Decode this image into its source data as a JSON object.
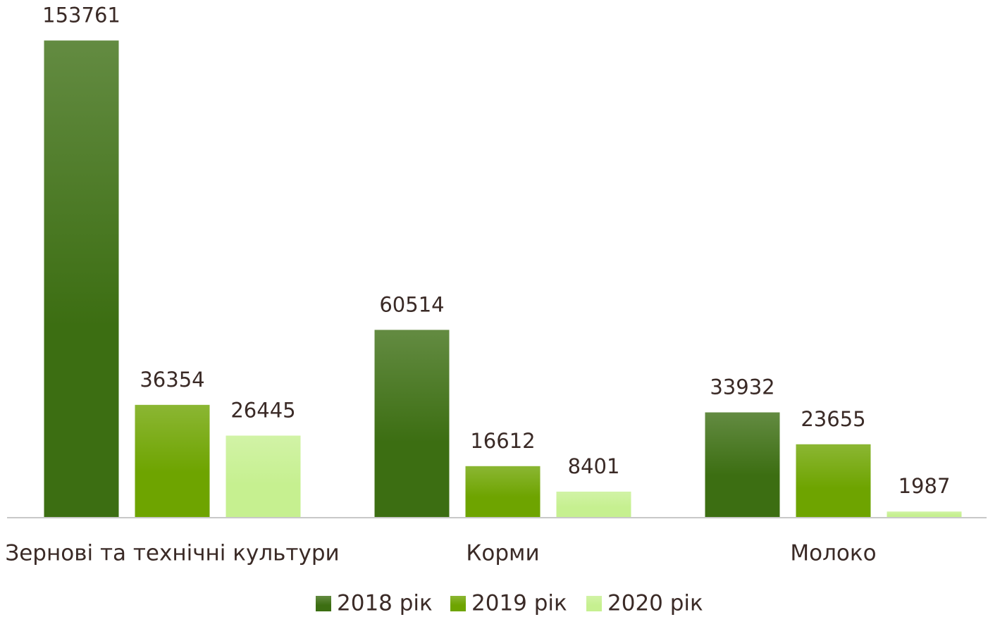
{
  "chart_data": {
    "type": "bar",
    "categories": [
      "Зернові та технічні культури",
      "Корми",
      "Молоко"
    ],
    "series": [
      {
        "name": "2018 рік",
        "color": "#3c6e12",
        "values": [
          153761,
          60514,
          33932
        ]
      },
      {
        "name": "2019 рік",
        "color": "#6ea400",
        "values": [
          36354,
          16612,
          23655
        ]
      },
      {
        "name": "2020 рік",
        "color": "#c6f090",
        "values": [
          26445,
          8401,
          1987
        ]
      }
    ],
    "ylim": [
      0,
      160000
    ],
    "legend": "bottom"
  }
}
